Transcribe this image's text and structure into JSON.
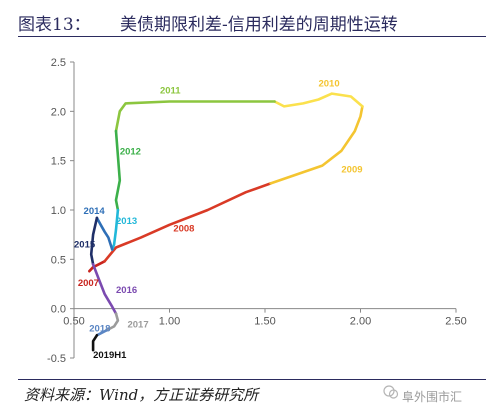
{
  "header": {
    "figure_label": "图表13：",
    "figure_title": "美债期限利差-信用利差的周期性运转"
  },
  "footer": {
    "source": "资料来源：Wind，方正证券研究所",
    "watermark": "阜外围市汇"
  },
  "chart_data": {
    "type": "line",
    "title": "美债期限利差-信用利差的周期性运转",
    "xlabel": "",
    "ylabel": "",
    "xlim": [
      0.5,
      2.5
    ],
    "ylim": [
      -0.5,
      2.5
    ],
    "x_ticks": [
      "0.50",
      "1.00",
      "1.50",
      "2.00",
      "2.50"
    ],
    "y_ticks": [
      "-0.5",
      "0.0",
      "0.5",
      "1.0",
      "1.5",
      "2.0",
      "2.5"
    ],
    "grid": false,
    "legend": "none",
    "series": [
      {
        "name": "2007",
        "color": "#c8241e",
        "x": [
          0.58,
          0.6,
          0.63,
          0.66
        ],
        "y": [
          0.38,
          0.42,
          0.45,
          0.48
        ]
      },
      {
        "name": "2008",
        "color": "#d93a26",
        "x": [
          0.66,
          0.72,
          0.85,
          1.0,
          1.2,
          1.4,
          1.53
        ],
        "y": [
          0.48,
          0.62,
          0.72,
          0.85,
          1.0,
          1.18,
          1.27
        ]
      },
      {
        "name": "2009",
        "color": "#f4c531",
        "x": [
          1.53,
          1.65,
          1.8,
          1.9,
          1.97,
          2.0,
          2.01
        ],
        "y": [
          1.27,
          1.35,
          1.45,
          1.6,
          1.8,
          1.95,
          2.05
        ]
      },
      {
        "name": "2010",
        "color": "#fbe14d",
        "x": [
          2.01,
          1.95,
          1.85,
          1.78,
          1.7,
          1.6,
          1.55
        ],
        "y": [
          2.05,
          2.15,
          2.18,
          2.12,
          2.08,
          2.05,
          2.1
        ]
      },
      {
        "name": "2011",
        "color": "#8cc63f",
        "x": [
          1.55,
          1.3,
          1.0,
          0.77,
          0.74,
          0.72
        ],
        "y": [
          2.1,
          2.1,
          2.1,
          2.08,
          2.0,
          1.8
        ]
      },
      {
        "name": "2012",
        "color": "#3cb04a",
        "x": [
          0.72,
          0.73,
          0.74,
          0.72,
          0.73
        ],
        "y": [
          1.8,
          1.55,
          1.3,
          1.1,
          1.0
        ]
      },
      {
        "name": "2013",
        "color": "#22b8d9",
        "x": [
          0.73,
          0.72,
          0.71,
          0.7
        ],
        "y": [
          1.0,
          0.8,
          0.65,
          0.6
        ]
      },
      {
        "name": "2014",
        "color": "#2e6fb7",
        "x": [
          0.7,
          0.68,
          0.66,
          0.64,
          0.62
        ],
        "y": [
          0.6,
          0.72,
          0.78,
          0.85,
          0.92
        ]
      },
      {
        "name": "2015",
        "color": "#1f2f68",
        "x": [
          0.62,
          0.6,
          0.59,
          0.6
        ],
        "y": [
          0.92,
          0.75,
          0.55,
          0.45
        ]
      },
      {
        "name": "2016",
        "color": "#7b4ab0",
        "x": [
          0.6,
          0.63,
          0.66,
          0.7,
          0.72
        ],
        "y": [
          0.45,
          0.3,
          0.15,
          0.02,
          -0.05
        ]
      },
      {
        "name": "2017",
        "color": "#9b9b9b",
        "x": [
          0.72,
          0.73,
          0.71,
          0.67
        ],
        "y": [
          -0.05,
          -0.12,
          -0.18,
          -0.22
        ]
      },
      {
        "name": "2018",
        "color": "#5b86c4",
        "x": [
          0.67,
          0.63,
          0.62
        ],
        "y": [
          -0.22,
          -0.26,
          -0.27
        ]
      },
      {
        "name": "2019H1",
        "color": "#111111",
        "x": [
          0.62,
          0.6,
          0.6
        ],
        "y": [
          -0.27,
          -0.33,
          -0.42
        ]
      }
    ],
    "annotations": [
      {
        "text": "2011",
        "x": 0.95,
        "y": 2.18,
        "color": "#8cc63f"
      },
      {
        "text": "2010",
        "x": 1.78,
        "y": 2.25,
        "color": "#f4c531"
      },
      {
        "text": "2012",
        "x": 0.74,
        "y": 1.56,
        "color": "#3cb04a"
      },
      {
        "text": "2009",
        "x": 1.9,
        "y": 1.38,
        "color": "#f4c531"
      },
      {
        "text": "2014",
        "x": 0.55,
        "y": 0.96,
        "color": "#2e6fb7"
      },
      {
        "text": "2013",
        "x": 0.72,
        "y": 0.86,
        "color": "#22b8d9"
      },
      {
        "text": "2008",
        "x": 1.02,
        "y": 0.78,
        "color": "#d93a26"
      },
      {
        "text": "2015",
        "x": 0.5,
        "y": 0.62,
        "color": "#1f2f68"
      },
      {
        "text": "2007",
        "x": 0.52,
        "y": 0.23,
        "color": "#c8241e"
      },
      {
        "text": "2016",
        "x": 0.72,
        "y": 0.16,
        "color": "#7b4ab0"
      },
      {
        "text": "2018",
        "x": 0.58,
        "y": -0.23,
        "color": "#5b86c4"
      },
      {
        "text": "2017",
        "x": 0.78,
        "y": -0.19,
        "color": "#9b9b9b"
      },
      {
        "text": "2019H1",
        "x": 0.6,
        "y": -0.5,
        "color": "#111111"
      }
    ]
  }
}
